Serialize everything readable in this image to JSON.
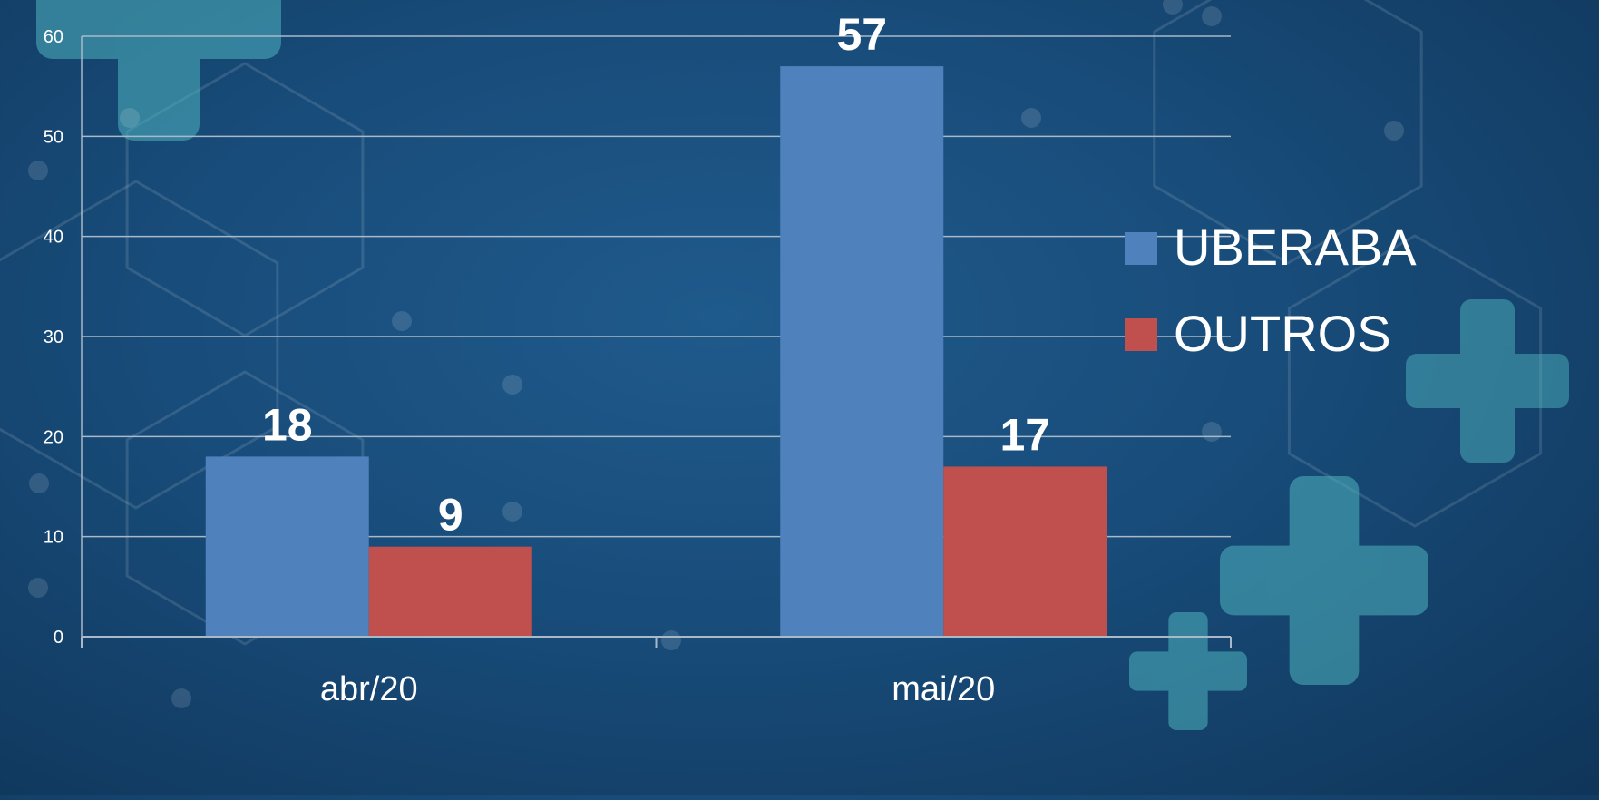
{
  "colors": {
    "background": "#184c7a",
    "gridline": "#a9b9c8",
    "axis_text": "#ffffff",
    "series_uberaba": "#4f81bd",
    "series_outros": "#c0504d",
    "decoration": "#4fb3bf"
  },
  "chart_data": {
    "type": "bar",
    "title": "",
    "xlabel": "",
    "ylabel": "",
    "categories": [
      "abr/20",
      "mai/20"
    ],
    "series": [
      {
        "name": "UBERABA",
        "values": [
          18,
          57
        ],
        "color": "#4f81bd"
      },
      {
        "name": "OUTROS",
        "values": [
          9,
          17
        ],
        "color": "#c0504d"
      }
    ],
    "ylim": [
      0,
      60
    ],
    "yticks": [
      0,
      10,
      20,
      30,
      40,
      50,
      60
    ],
    "data_labels": true,
    "grid": true,
    "legend_position": "right"
  }
}
